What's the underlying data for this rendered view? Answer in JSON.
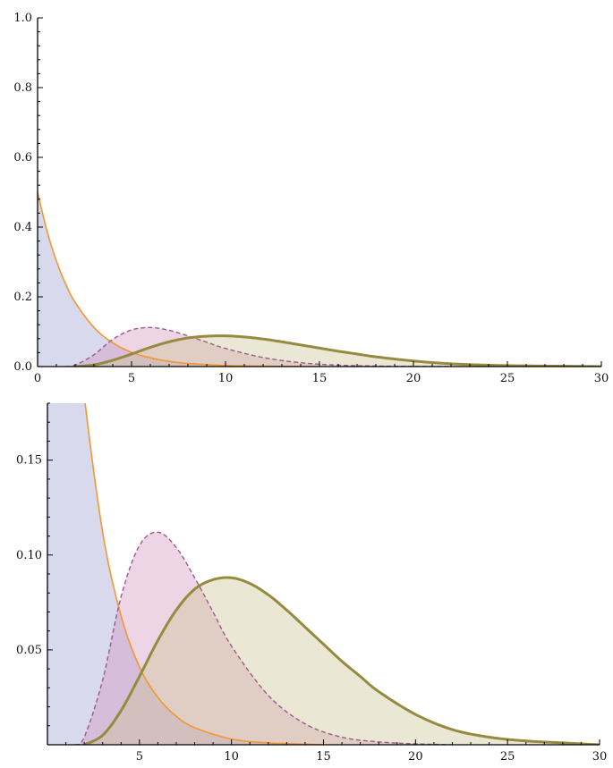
{
  "chart_data": [
    {
      "type": "area",
      "title": "",
      "xlabel": "",
      "ylabel": "",
      "xlim": [
        0,
        30
      ],
      "ylim": [
        0,
        1.0
      ],
      "grid": false,
      "legend": "none",
      "x_ticks": [
        0,
        5,
        10,
        15,
        20,
        25,
        30
      ],
      "y_ticks": [
        0.0,
        0.2,
        0.4,
        0.6,
        0.8,
        1.0
      ],
      "x_tick_labels": [
        "0",
        "5",
        "10",
        "15",
        "20",
        "25",
        "30"
      ],
      "y_tick_labels": [
        "0.0",
        "0.2",
        "0.4",
        "0.6",
        "0.8",
        "1.0"
      ],
      "series": [
        {
          "x": [
            0,
            0.5,
            1,
            1.5,
            2,
            3,
            4,
            5,
            6,
            7,
            8,
            10,
            12,
            15
          ],
          "y": [
            0.5,
            0.389,
            0.303,
            0.236,
            0.184,
            0.112,
            0.068,
            0.041,
            0.025,
            0.015,
            0.009,
            0.003,
            0.001,
            0.0
          ],
          "style": "solid-orange",
          "fill": "lavender"
        },
        {
          "x": [
            1.5,
            2,
            3,
            4,
            5,
            6,
            7,
            8,
            9,
            10,
            12,
            14,
            16,
            18,
            20,
            22
          ],
          "y": [
            0.0,
            0.004,
            0.034,
            0.078,
            0.105,
            0.112,
            0.104,
            0.088,
            0.07,
            0.052,
            0.026,
            0.011,
            0.004,
            0.0015,
            0.0005,
            0.0
          ],
          "style": "dashed-purple",
          "fill": "pink"
        },
        {
          "x": [
            2,
            3,
            4,
            5,
            6,
            7,
            8,
            9,
            10,
            11,
            12,
            13,
            14,
            15,
            16,
            17,
            18,
            20,
            22,
            24,
            26,
            28,
            30
          ],
          "y": [
            0.0,
            0.005,
            0.018,
            0.036,
            0.055,
            0.071,
            0.082,
            0.087,
            0.088,
            0.085,
            0.079,
            0.071,
            0.062,
            0.053,
            0.044,
            0.036,
            0.028,
            0.016,
            0.008,
            0.004,
            0.002,
            0.001,
            0.0
          ],
          "style": "thick-olive",
          "fill": "beige"
        }
      ],
      "colors": {
        "series1": "#f5962e",
        "series2": "#9b5a8e",
        "series3": "#958a3e"
      }
    },
    {
      "type": "area",
      "title": "",
      "xlabel": "",
      "ylabel": "",
      "xlim": [
        0,
        30
      ],
      "ylim": [
        0,
        0.18
      ],
      "grid": false,
      "legend": "none",
      "x_ticks": [
        5,
        10,
        15,
        20,
        25,
        30
      ],
      "y_ticks": [
        0.05,
        0.1,
        0.15
      ],
      "x_tick_labels": [
        "5",
        "10",
        "15",
        "20",
        "25",
        "30"
      ],
      "y_tick_labels": [
        "0.05",
        "0.10",
        "0.15"
      ],
      "series_ref": "same as chart 1"
    }
  ]
}
